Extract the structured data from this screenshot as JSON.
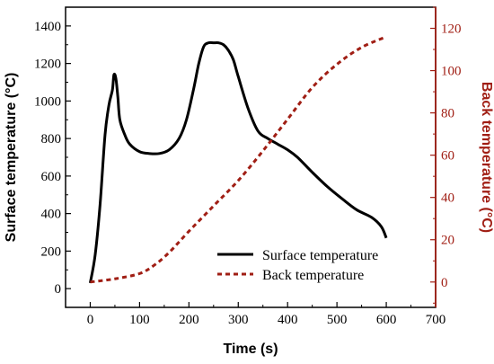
{
  "chart_data": {
    "type": "line",
    "xlabel": "Time (s)",
    "ylabel_left": "Surface temperature (°C)",
    "ylabel_right": "Back temperature (°C)",
    "xlim": [
      -50,
      700
    ],
    "ylim_left": [
      -100,
      1500
    ],
    "ylim_right": [
      -12,
      130
    ],
    "x_ticks": [
      0,
      100,
      200,
      300,
      400,
      500,
      600,
      700
    ],
    "y_left_ticks": [
      0,
      200,
      400,
      600,
      800,
      1000,
      1200,
      1400
    ],
    "y_right_ticks": [
      0,
      20,
      40,
      60,
      80,
      100,
      120
    ],
    "grid": false,
    "legend_position": "lower-right",
    "colors": {
      "left_axis": "#000000",
      "right_axis": "#a01e14",
      "surface": "#000000",
      "back": "#a01e14"
    },
    "series": [
      {
        "name": "Surface temperature",
        "axis": "left",
        "style": "solid",
        "x": [
          0,
          10,
          20,
          30,
          38,
          45,
          48,
          52,
          56,
          60,
          70,
          80,
          100,
          120,
          140,
          160,
          180,
          195,
          210,
          220,
          230,
          240,
          250,
          260,
          270,
          280,
          290,
          300,
          320,
          340,
          360,
          380,
          400,
          420,
          450,
          480,
          510,
          540,
          570,
          590,
          600
        ],
        "y": [
          30,
          180,
          450,
          820,
          980,
          1060,
          1140,
          1120,
          1020,
          900,
          820,
          770,
          730,
          720,
          720,
          740,
          800,
          900,
          1070,
          1200,
          1290,
          1310,
          1310,
          1310,
          1300,
          1270,
          1220,
          1130,
          960,
          840,
          800,
          770,
          740,
          700,
          620,
          545,
          480,
          420,
          380,
          330,
          270
        ]
      },
      {
        "name": "Back temperature",
        "axis": "right",
        "style": "dashed",
        "x": [
          0,
          50,
          100,
          130,
          160,
          200,
          250,
          300,
          350,
          400,
          450,
          500,
          550,
          600
        ],
        "y": [
          0,
          1.5,
          4,
          8,
          14,
          24,
          36,
          48,
          62,
          77,
          92,
          103,
          111,
          116
        ]
      }
    ]
  }
}
